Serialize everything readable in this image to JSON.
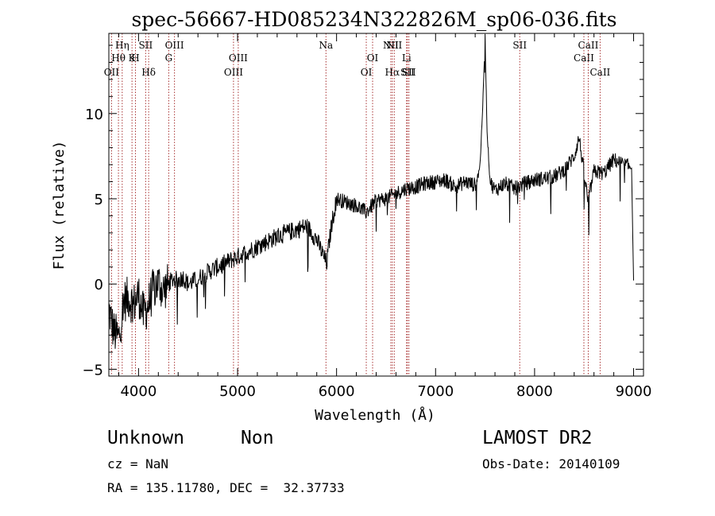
{
  "chart_data": {
    "type": "line",
    "title": "spec-56667-HD085234N322826M_sp06-036.fits",
    "xlabel": "Wavelength (Å)",
    "ylabel": "Flux (relative)",
    "xlim": [
      3700,
      9100
    ],
    "ylim": [
      -5.4,
      14.7
    ],
    "xticks": [
      4000,
      5000,
      6000,
      7000,
      8000,
      9000
    ],
    "yticks": [
      -5,
      0,
      5,
      10
    ],
    "grid": false,
    "series": [
      {
        "x": [
          3700,
          3750,
          3800,
          3850,
          3900,
          3950,
          4000,
          4050,
          4100,
          4150,
          4200,
          4250,
          4300,
          4350,
          4400,
          4450,
          4500,
          4600,
          4700,
          4800,
          4900,
          5000,
          5100,
          5200,
          5300,
          5400,
          5500,
          5600,
          5700,
          5800,
          5900,
          5920,
          5950,
          6000,
          6100,
          6200,
          6300,
          6400,
          6500,
          6600,
          6700,
          6800,
          6900,
          7000,
          7100,
          7200,
          7300,
          7400,
          7450,
          7480,
          7500,
          7520,
          7550,
          7600,
          7700,
          7800,
          7900,
          8000,
          8100,
          8200,
          8300,
          8400,
          8450,
          8500,
          8540,
          8600,
          8700,
          8800,
          8900,
          8950,
          8980,
          9000
        ],
        "y": [
          -1.5,
          -2.8,
          -3.2,
          -1.0,
          -0.8,
          -1.2,
          -0.6,
          -1.8,
          -1.2,
          -0.3,
          0.1,
          -0.4,
          0.0,
          0.3,
          0.2,
          0.4,
          0.0,
          0.3,
          0.7,
          1.0,
          1.3,
          1.6,
          1.9,
          2.2,
          2.5,
          2.8,
          3.0,
          3.2,
          3.4,
          2.6,
          1.2,
          2.2,
          3.5,
          5.0,
          4.8,
          4.6,
          4.2,
          4.9,
          5.0,
          5.3,
          5.6,
          5.7,
          5.9,
          6.0,
          6.1,
          5.7,
          6.0,
          5.8,
          7.0,
          11.0,
          14.5,
          9.0,
          6.0,
          5.5,
          5.9,
          5.6,
          5.9,
          6.1,
          6.2,
          6.3,
          6.7,
          7.5,
          8.6,
          6.5,
          4.8,
          6.6,
          6.5,
          7.3,
          7.0,
          6.9,
          6.8,
          0.2
        ]
      }
    ],
    "line_markers": [
      {
        "label": "OII",
        "x": 3727,
        "row": 3
      },
      {
        "label": "Hθ",
        "x": 3797,
        "row": 2
      },
      {
        "label": "Hη",
        "x": 3835,
        "row": 1
      },
      {
        "label": "K",
        "x": 3934,
        "row": 2
      },
      {
        "label": "H",
        "x": 3969,
        "row": 2
      },
      {
        "label": "SII",
        "x": 4072,
        "row": 1
      },
      {
        "label": "Hδ",
        "x": 4102,
        "row": 3
      },
      {
        "label": "G",
        "x": 4305,
        "row": 2
      },
      {
        "label": "OIII",
        "x": 4363,
        "row": 1
      },
      {
        "label": "OIII",
        "x": 4959,
        "row": 3
      },
      {
        "label": "OIII",
        "x": 5007,
        "row": 2
      },
      {
        "label": "Na",
        "x": 5893,
        "row": 1
      },
      {
        "label": "OI",
        "x": 6300,
        "row": 3
      },
      {
        "label": "OI",
        "x": 6364,
        "row": 2
      },
      {
        "label": "NII",
        "x": 6548,
        "row": 1
      },
      {
        "label": "Hα",
        "x": 6563,
        "row": 3
      },
      {
        "label": "NII",
        "x": 6583,
        "row": 1
      },
      {
        "label": "Li",
        "x": 6707,
        "row": 2
      },
      {
        "label": "SII",
        "x": 6716,
        "row": 3
      },
      {
        "label": "SII",
        "x": 6731,
        "row": 3
      },
      {
        "label": "SII",
        "x": 7850,
        "row": 1
      },
      {
        "label": "CaII",
        "x": 8498,
        "row": 2
      },
      {
        "label": "CaII",
        "x": 8542,
        "row": 1
      },
      {
        "label": "CaII",
        "x": 8662,
        "row": 3
      }
    ]
  },
  "info": {
    "class_label": "Unknown",
    "subclass_label": "Non",
    "survey": "LAMOST DR2",
    "cz": "cz = NaN",
    "obs_date": "Obs-Date: 20140109",
    "coords": "RA = 135.11780, DEC =  32.37733"
  },
  "colors": {
    "spectrum": "#000000",
    "line_marker": "#a83232",
    "background": "#ffffff"
  }
}
